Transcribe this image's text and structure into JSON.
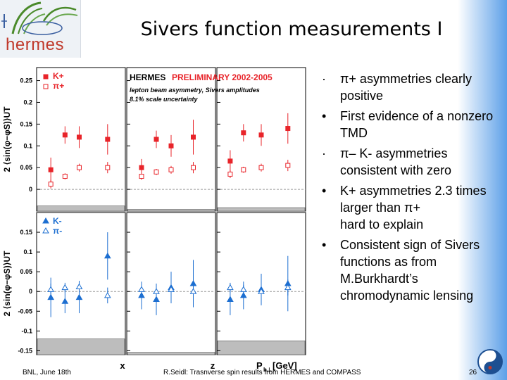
{
  "slide": {
    "title": "Sivers function measurements I",
    "logo_text": "hermes",
    "footer_left": "BNL, June 18th",
    "footer_center": "R.Seidl: Trasnverse spin results from HERMES and COMPASS",
    "page_number": "26",
    "accent_colors": {
      "red": "#e8242a",
      "blue": "#1d6fd1",
      "gray_band": "#bdbdbd"
    }
  },
  "bullets": [
    {
      "marker": "·",
      "text": "π+ asymmetries clearly positive"
    },
    {
      "marker": "•",
      "text": " First evidence of a nonzero TMD"
    },
    {
      "marker": "·",
      "text": "π– K- asymmetries consistent with zero"
    },
    {
      "marker": "•",
      "text": "K+ asymmetries 2.3 times larger than π+"
    },
    {
      "marker": "",
      "text": "hard to explain"
    },
    {
      "marker": "•",
      "text": "Consistent sign of Sivers functions as from M.Burkhardt’s chromodynamic lensing"
    }
  ],
  "chart_data": {
    "type": "scatter",
    "header": {
      "title_black": "HERMES",
      "title_red": "PRELIMINARY 2002-2005",
      "lines": [
        "lepton beam asymmetry, Sivers amplitudes",
        "8.1% scale uncertainty"
      ]
    },
    "x_panels": [
      "x",
      "z",
      "P_h⊥ [GeV]"
    ],
    "xlabels": {
      "x": "x",
      "z": "z",
      "pt_main": "P",
      "pt_sub": "h⊥",
      "pt_unit": " [GeV]"
    },
    "ylabel": "2 ⟨sin(φ−φS)⟩UT",
    "rows": [
      {
        "ylim": [
          -0.05,
          0.28
        ],
        "ticks": [
          "0.25",
          "0.2",
          "0.15",
          "0.1",
          "0.05",
          "0"
        ],
        "tick_values": [
          0.25,
          0.2,
          0.15,
          0.1,
          0.05,
          0
        ],
        "legend": [
          {
            "label": "K+",
            "style": "filled-square",
            "color": "#e8242a"
          },
          {
            "label": "π+",
            "style": "open-square",
            "color": "#e8242a"
          }
        ],
        "series": [
          {
            "name": "K+",
            "style": "filled-square",
            "color": "#e8242a",
            "points": [
              {
                "panel": 0,
                "x": 0.04,
                "y": 0.045,
                "err": 0.028
              },
              {
                "panel": 0,
                "x": 0.08,
                "y": 0.125,
                "err": 0.02
              },
              {
                "panel": 0,
                "x": 0.12,
                "y": 0.12,
                "err": 0.025
              },
              {
                "panel": 0,
                "x": 0.2,
                "y": 0.115,
                "err": 0.035
              },
              {
                "panel": 1,
                "x": 0.25,
                "y": 0.05,
                "err": 0.02
              },
              {
                "panel": 1,
                "x": 0.35,
                "y": 0.115,
                "err": 0.02
              },
              {
                "panel": 1,
                "x": 0.45,
                "y": 0.1,
                "err": 0.025
              },
              {
                "panel": 1,
                "x": 0.6,
                "y": 0.12,
                "err": 0.04
              },
              {
                "panel": 2,
                "x": 0.15,
                "y": 0.065,
                "err": 0.025
              },
              {
                "panel": 2,
                "x": 0.3,
                "y": 0.13,
                "err": 0.02
              },
              {
                "panel": 2,
                "x": 0.5,
                "y": 0.125,
                "err": 0.025
              },
              {
                "panel": 2,
                "x": 0.8,
                "y": 0.14,
                "err": 0.035
              }
            ]
          },
          {
            "name": "π+",
            "style": "open-square",
            "color": "#e8242a",
            "points": [
              {
                "panel": 0,
                "x": 0.04,
                "y": 0.012,
                "err": 0.01
              },
              {
                "panel": 0,
                "x": 0.08,
                "y": 0.03,
                "err": 0.007
              },
              {
                "panel": 0,
                "x": 0.12,
                "y": 0.05,
                "err": 0.009
              },
              {
                "panel": 0,
                "x": 0.2,
                "y": 0.05,
                "err": 0.013
              },
              {
                "panel": 1,
                "x": 0.25,
                "y": 0.03,
                "err": 0.008
              },
              {
                "panel": 1,
                "x": 0.35,
                "y": 0.04,
                "err": 0.007
              },
              {
                "panel": 1,
                "x": 0.45,
                "y": 0.045,
                "err": 0.009
              },
              {
                "panel": 1,
                "x": 0.6,
                "y": 0.05,
                "err": 0.013
              },
              {
                "panel": 2,
                "x": 0.15,
                "y": 0.035,
                "err": 0.009
              },
              {
                "panel": 2,
                "x": 0.3,
                "y": 0.045,
                "err": 0.007
              },
              {
                "panel": 2,
                "x": 0.5,
                "y": 0.05,
                "err": 0.009
              },
              {
                "panel": 2,
                "x": 0.8,
                "y": 0.055,
                "err": 0.013
              }
            ]
          }
        ],
        "systematic_band": [
          0.012,
          0.004,
          0.008
        ]
      },
      {
        "ylim": [
          -0.16,
          0.2
        ],
        "ticks": [
          "0.15",
          "0.1",
          "0.05",
          "0",
          "-0.05",
          "-0.1",
          "-0.15"
        ],
        "tick_values": [
          0.15,
          0.1,
          0.05,
          0,
          -0.05,
          -0.1,
          -0.15
        ],
        "legend": [
          {
            "label": "K-",
            "style": "filled-triangle",
            "color": "#1d6fd1"
          },
          {
            "label": "π-",
            "style": "open-triangle",
            "color": "#1d6fd1"
          }
        ],
        "series": [
          {
            "name": "K-",
            "style": "filled-triangle",
            "color": "#1d6fd1",
            "points": [
              {
                "panel": 0,
                "x": 0.04,
                "y": -0.015,
                "err": 0.05
              },
              {
                "panel": 0,
                "x": 0.08,
                "y": -0.025,
                "err": 0.03
              },
              {
                "panel": 0,
                "x": 0.12,
                "y": -0.015,
                "err": 0.04
              },
              {
                "panel": 0,
                "x": 0.2,
                "y": 0.09,
                "err": 0.06
              },
              {
                "panel": 1,
                "x": 0.25,
                "y": -0.01,
                "err": 0.035
              },
              {
                "panel": 1,
                "x": 0.35,
                "y": -0.02,
                "err": 0.04
              },
              {
                "panel": 1,
                "x": 0.45,
                "y": 0.01,
                "err": 0.04
              },
              {
                "panel": 1,
                "x": 0.6,
                "y": 0.02,
                "err": 0.06
              },
              {
                "panel": 2,
                "x": 0.15,
                "y": -0.02,
                "err": 0.04
              },
              {
                "panel": 2,
                "x": 0.3,
                "y": -0.01,
                "err": 0.035
              },
              {
                "panel": 2,
                "x": 0.5,
                "y": 0.005,
                "err": 0.04
              },
              {
                "panel": 2,
                "x": 0.8,
                "y": 0.02,
                "err": 0.07
              }
            ]
          },
          {
            "name": "π-",
            "style": "open-triangle",
            "color": "#1d6fd1",
            "points": [
              {
                "panel": 0,
                "x": 0.04,
                "y": 0.005,
                "err": 0.015
              },
              {
                "panel": 0,
                "x": 0.08,
                "y": 0.01,
                "err": 0.012
              },
              {
                "panel": 0,
                "x": 0.12,
                "y": 0.012,
                "err": 0.015
              },
              {
                "panel": 0,
                "x": 0.2,
                "y": -0.01,
                "err": 0.02
              },
              {
                "panel": 1,
                "x": 0.25,
                "y": 0.005,
                "err": 0.012
              },
              {
                "panel": 1,
                "x": 0.35,
                "y": 0.0,
                "err": 0.012
              },
              {
                "panel": 1,
                "x": 0.45,
                "y": 0.005,
                "err": 0.015
              },
              {
                "panel": 1,
                "x": 0.6,
                "y": 0.0,
                "err": 0.02
              },
              {
                "panel": 2,
                "x": 0.15,
                "y": 0.01,
                "err": 0.012
              },
              {
                "panel": 2,
                "x": 0.3,
                "y": 0.005,
                "err": 0.012
              },
              {
                "panel": 2,
                "x": 0.5,
                "y": 0.0,
                "err": 0.015
              },
              {
                "panel": 2,
                "x": 0.8,
                "y": 0.01,
                "err": 0.02
              }
            ]
          }
        ],
        "systematic_band": [
          0.04,
          0.006,
          0.035
        ]
      }
    ]
  }
}
